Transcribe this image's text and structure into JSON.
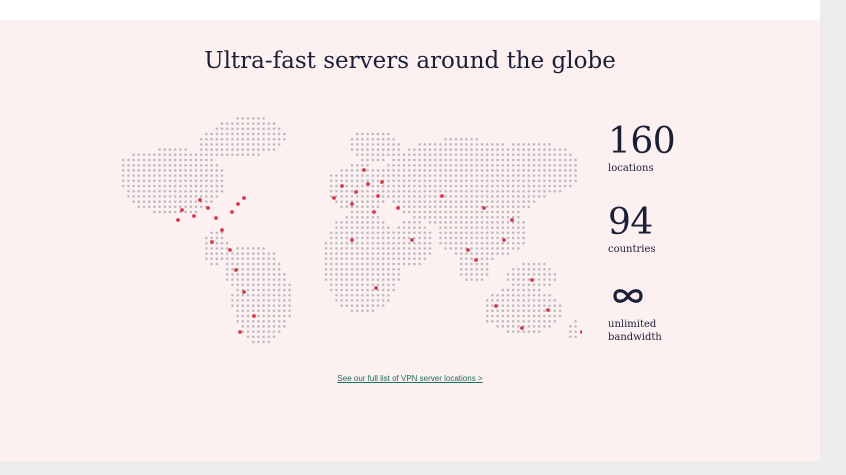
{
  "headline": "Ultra-fast servers around the globe",
  "stats": [
    {
      "value": "160",
      "label": "locations"
    },
    {
      "value": "94",
      "label": "countries"
    },
    {
      "icon": "infinity-icon",
      "label_line1": "unlimited",
      "label_line2": "bandwidth"
    }
  ],
  "link": "See our full list of VPN server locations >",
  "colors": {
    "background": "#fcf0f0",
    "text": "#1b1f36",
    "map_dot": "#b8b8c0",
    "server_dot": "#d33a4a",
    "link": "#1b6e5b"
  }
}
